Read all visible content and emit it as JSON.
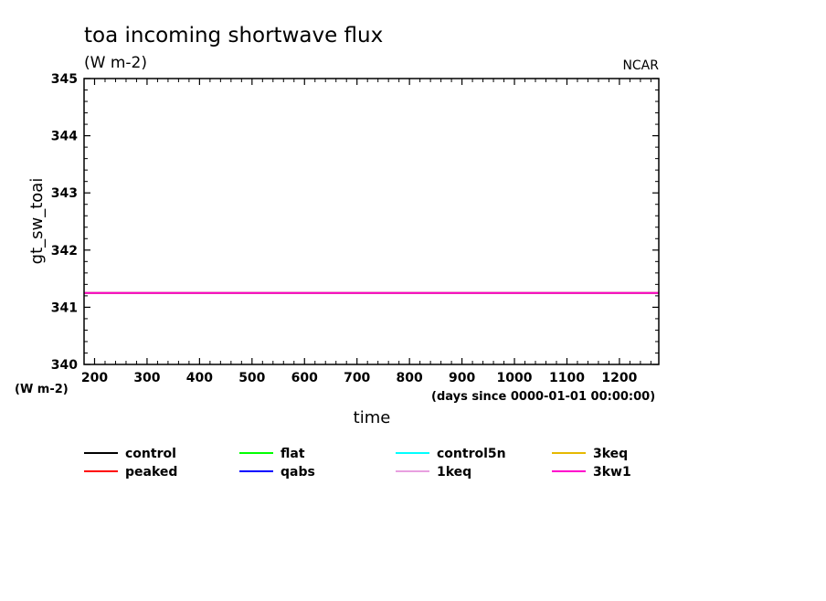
{
  "chart_data": {
    "type": "line",
    "title": "toa incoming shortwave flux",
    "subtitle": "(W m-2)",
    "credit": "NCAR",
    "xlabel": "time",
    "x_units": "(days since 0000-01-01 00:00:00)",
    "ylabel": "gt_sw_toai",
    "y_units": "(W m-2)",
    "xlim": [
      180,
      1275
    ],
    "ylim": [
      340,
      345
    ],
    "xticks": [
      200,
      300,
      400,
      500,
      600,
      700,
      800,
      900,
      1000,
      1100,
      1200
    ],
    "xtick_labels": [
      "200",
      "300",
      "400",
      "500",
      "600",
      "700",
      "800",
      "900",
      "1000",
      "1100",
      "1200"
    ],
    "yticks": [
      340,
      341,
      342,
      343,
      344,
      345
    ],
    "ytick_labels": [
      "340",
      "341",
      "342",
      "343",
      "344",
      "345"
    ],
    "grid": false,
    "legend_position": "bottom",
    "series": [
      {
        "name": "control",
        "color": "#000000",
        "x": [
          180,
          1275
        ],
        "values": [
          341.25,
          341.25
        ]
      },
      {
        "name": "peaked",
        "color": "#ff0000",
        "x": [
          180,
          1275
        ],
        "values": [
          341.25,
          341.25
        ]
      },
      {
        "name": "flat",
        "color": "#00ff00",
        "x": [
          180,
          1275
        ],
        "values": [
          341.25,
          341.25
        ]
      },
      {
        "name": "qabs",
        "color": "#0000ff",
        "x": [
          180,
          1275
        ],
        "values": [
          341.25,
          341.25
        ]
      },
      {
        "name": "control5n",
        "color": "#00ffff",
        "x": [
          180,
          1275
        ],
        "values": [
          341.25,
          341.25
        ]
      },
      {
        "name": "1keq",
        "color": "#e8a0e0",
        "x": [
          180,
          1275
        ],
        "values": [
          341.25,
          341.25
        ]
      },
      {
        "name": "3keq",
        "color": "#e6b800",
        "x": [
          180,
          1275
        ],
        "values": [
          341.25,
          341.25
        ]
      },
      {
        "name": "3kw1",
        "color": "#ff00cc",
        "x": [
          180,
          1275
        ],
        "values": [
          341.25,
          341.25
        ]
      }
    ]
  }
}
